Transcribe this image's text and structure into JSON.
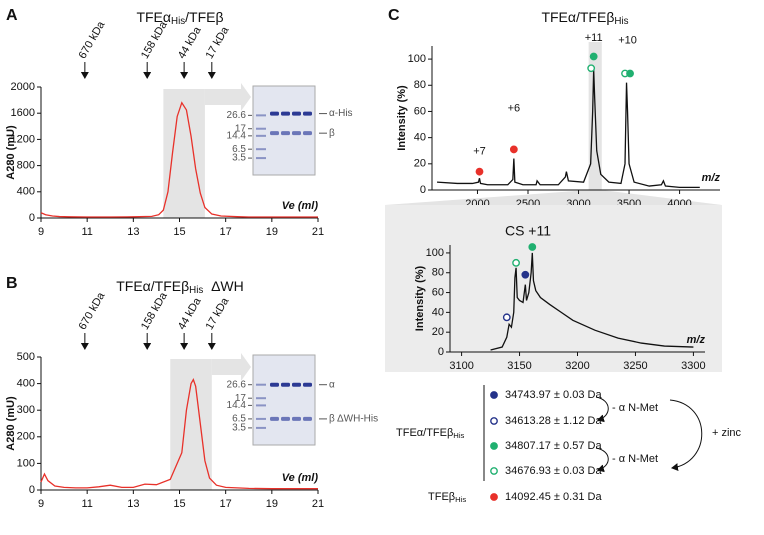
{
  "panel_labels": [
    "A",
    "B",
    "C"
  ],
  "chart_data": [
    {
      "type": "line",
      "title": [
        "TFEα",
        "His",
        "/TFEβ"
      ],
      "x_label": "Ve (ml)",
      "y_label": "A280 (mU)",
      "color": "#e8312a",
      "xlim": [
        9,
        21
      ],
      "xticks": [
        9,
        11,
        13,
        15,
        17,
        19,
        21
      ],
      "ylim": [
        0,
        2000
      ],
      "yticks": [
        0,
        400,
        800,
        1200,
        1600,
        2000
      ],
      "x": [
        9,
        9.2,
        9.5,
        9.8,
        10.2,
        11,
        12,
        13,
        13.8,
        14.1,
        14.3,
        14.5,
        14.7,
        14.9,
        15.1,
        15.3,
        15.5,
        15.7,
        15.9,
        16.1,
        16.4,
        16.8,
        17.5,
        18,
        19,
        20,
        21
      ],
      "y": [
        80,
        50,
        30,
        22,
        18,
        15,
        15,
        18,
        25,
        50,
        120,
        400,
        1000,
        1550,
        1760,
        1650,
        1250,
        750,
        380,
        160,
        60,
        30,
        20,
        15,
        15,
        15,
        15
      ],
      "shade": [
        14.3,
        16.1
      ],
      "size_markers": [
        {
          "label": "670 kDa",
          "x": 10.9
        },
        {
          "label": "158 kDa",
          "x": 13.6
        },
        {
          "label": "44 kDa",
          "x": 15.2
        },
        {
          "label": "17 kDa",
          "x": 16.4
        }
      ],
      "gel": {
        "ladder": [
          "26.6",
          "17",
          "14.4",
          "6.5",
          "3.5"
        ],
        "bands": [
          "α-His",
          "β"
        ]
      }
    },
    {
      "type": "line",
      "title": [
        "TFEα/TFEβ",
        "His",
        "  ΔWH"
      ],
      "x_label": "Ve (ml)",
      "y_label": "A280 (mU)",
      "color": "#e8312a",
      "xlim": [
        9,
        21
      ],
      "xticks": [
        9,
        11,
        13,
        15,
        17,
        19,
        21
      ],
      "ylim": [
        0,
        500
      ],
      "yticks": [
        0,
        100,
        200,
        300,
        400,
        500
      ],
      "x": [
        9,
        9.15,
        9.3,
        9.6,
        10,
        10.5,
        11,
        11.5,
        12,
        12.5,
        13,
        13.5,
        14,
        14.6,
        15.1,
        15.3,
        15.5,
        15.6,
        15.7,
        15.9,
        16.1,
        16.3,
        16.6,
        17,
        17.5,
        18,
        19,
        20,
        21
      ],
      "y": [
        30,
        60,
        35,
        15,
        10,
        8,
        8,
        12,
        18,
        10,
        10,
        22,
        20,
        40,
        140,
        300,
        400,
        415,
        390,
        250,
        110,
        45,
        18,
        10,
        8,
        6,
        5,
        5,
        5
      ],
      "shade": [
        14.6,
        16.4
      ],
      "size_markers": [
        {
          "label": "670 kDa",
          "x": 10.9
        },
        {
          "label": "158 kDa",
          "x": 13.6
        },
        {
          "label": "44 kDa",
          "x": 15.2
        },
        {
          "label": "17 kDa",
          "x": 16.4
        }
      ],
      "gel": {
        "ladder": [
          "26.6",
          "17",
          "14.4",
          "6.5",
          "3.5"
        ],
        "bands": [
          "α",
          "β ΔWH-His"
        ]
      }
    },
    {
      "type": "line",
      "title": [
        "TFEα/TFEβ",
        "His"
      ],
      "x_label": "m/z",
      "y_label": "Intensity (%)",
      "color": "#111111",
      "xlim": [
        1550,
        4400
      ],
      "xticks": [
        2000,
        2500,
        3000,
        3500,
        4000
      ],
      "ylim": [
        0,
        110
      ],
      "yticks": [
        0,
        20,
        40,
        60,
        80,
        100
      ],
      "x": [
        1600,
        1800,
        1950,
        2010,
        2020,
        2030,
        2100,
        2300,
        2350,
        2360,
        2370,
        2450,
        2580,
        2590,
        2620,
        2800,
        2870,
        2880,
        2900,
        3050,
        3120,
        3140,
        3150,
        3160,
        3180,
        3220,
        3300,
        3420,
        3460,
        3475,
        3485,
        3500,
        3550,
        3700,
        3820,
        3840,
        3860,
        4000,
        4200
      ],
      "y": [
        6,
        5,
        5,
        6,
        9,
        5,
        4,
        4,
        8,
        24,
        6,
        4,
        4,
        7,
        4,
        4,
        10,
        14,
        7,
        6,
        20,
        60,
        92,
        70,
        30,
        12,
        6,
        5,
        20,
        82,
        60,
        20,
        6,
        3,
        4,
        7,
        3,
        2,
        2
      ],
      "shade": [
        3100,
        3230
      ],
      "points": [
        {
          "x": 2020,
          "y": 14,
          "color": "#e8312a",
          "filled": true
        },
        {
          "x": 2360,
          "y": 31,
          "color": "#e8312a",
          "filled": true
        },
        {
          "x": 3125,
          "y": 93,
          "color": "#20b070",
          "filled": false
        },
        {
          "x": 3150,
          "y": 102,
          "color": "#20b070",
          "filled": true
        },
        {
          "x": 3460,
          "y": 89,
          "color": "#20b070",
          "filled": false
        },
        {
          "x": 3510,
          "y": 89,
          "color": "#20b070",
          "filled": true
        }
      ],
      "peak_labels": [
        {
          "label": "+7",
          "x": 2020,
          "y": 20
        },
        {
          "label": "+6",
          "x": 2360,
          "y": 53
        },
        {
          "label": "+11",
          "x": 3150,
          "y": 107
        },
        {
          "label": "+10",
          "x": 3485,
          "y": 105
        }
      ]
    },
    {
      "type": "line",
      "title": "CS +11",
      "x_label": "m/z",
      "y_label": "Intensity (%)",
      "color": "#111111",
      "xlim": [
        3090,
        3310
      ],
      "xticks": [
        3100,
        3150,
        3200,
        3250,
        3300
      ],
      "ylim": [
        0,
        108
      ],
      "yticks": [
        0,
        20,
        40,
        60,
        80,
        100
      ],
      "x": [
        3125,
        3135,
        3139,
        3141,
        3143,
        3145,
        3146,
        3147,
        3148,
        3150,
        3153,
        3155,
        3156,
        3158,
        3160,
        3161,
        3162,
        3164,
        3168,
        3176,
        3186,
        3196,
        3215,
        3235,
        3255,
        3275,
        3300
      ],
      "y": [
        2,
        5,
        15,
        28,
        25,
        40,
        75,
        85,
        55,
        52,
        50,
        68,
        52,
        60,
        80,
        100,
        72,
        62,
        55,
        48,
        40,
        32,
        22,
        14,
        9,
        6,
        5
      ],
      "points": [
        {
          "x": 3139,
          "y": 35,
          "color": "#25338a",
          "filled": false
        },
        {
          "x": 3147,
          "y": 90,
          "color": "#20b070",
          "filled": false
        },
        {
          "x": 3155,
          "y": 78,
          "color": "#25338a",
          "filled": true
        },
        {
          "x": 3161,
          "y": 106,
          "color": "#20b070",
          "filled": true
        }
      ]
    }
  ],
  "mass_table": {
    "group_label": [
      "TFEα/TFEβ",
      "His"
    ],
    "rows": [
      {
        "mass": "34743.97 ± 0.03 Da",
        "color": "#25338a",
        "filled": true
      },
      {
        "mass": "34613.28 ± 1.12 Da",
        "color": "#25338a",
        "filled": false
      },
      {
        "mass": "34807.17 ± 0.57 Da",
        "color": "#20b070",
        "filled": true
      },
      {
        "mass": "34676.93 ± 0.03 Da",
        "color": "#20b070",
        "filled": false
      }
    ],
    "single": {
      "label": [
        "TFEβ",
        "His"
      ],
      "mass": "14092.45 ± 0.31 Da",
      "color": "#e8312a",
      "filled": true
    },
    "arrows": [
      "- α N-Met",
      "- α N-Met",
      "+ zinc"
    ]
  }
}
